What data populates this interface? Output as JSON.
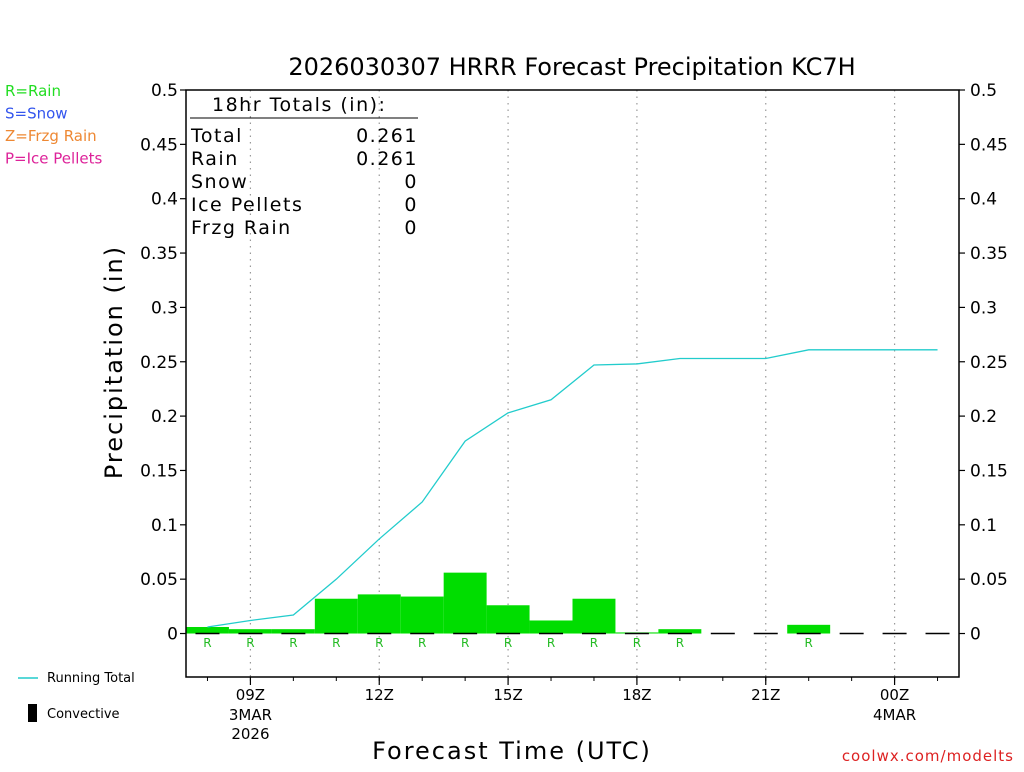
{
  "chart_data": {
    "type": "bar",
    "title": "2026030307 HRRR Forecast Precipitation KC7H",
    "xlabel": "Forecast Time (UTC)",
    "ylabel": "Precipitation (in)",
    "ylim": [
      -0.04,
      0.5
    ],
    "yticks": [
      "0",
      "0.05",
      "0.1",
      "0.15",
      "0.2",
      "0.25",
      "0.3",
      "0.35",
      "0.4",
      "0.45",
      "0.5"
    ],
    "ytick_values": [
      0,
      0.05,
      0.1,
      0.15,
      0.2,
      0.25,
      0.3,
      0.35,
      0.4,
      0.45,
      0.5
    ],
    "xlim_hours": [
      7.5,
      25.5
    ],
    "xticks": [
      {
        "hour": 9,
        "label": "09Z",
        "sub1": "3MAR",
        "sub2": "2026"
      },
      {
        "hour": 12,
        "label": "12Z",
        "sub1": "",
        "sub2": ""
      },
      {
        "hour": 15,
        "label": "15Z",
        "sub1": "",
        "sub2": ""
      },
      {
        "hour": 18,
        "label": "18Z",
        "sub1": "",
        "sub2": ""
      },
      {
        "hour": 21,
        "label": "21Z",
        "sub1": "",
        "sub2": ""
      },
      {
        "hour": 24,
        "label": "00Z",
        "sub1": "4MAR",
        "sub2": ""
      }
    ],
    "hours": [
      8,
      9,
      10,
      11,
      12,
      13,
      14,
      15,
      16,
      17,
      18,
      19,
      20,
      21,
      22,
      23,
      24,
      25
    ],
    "hourly_precip": [
      0.006,
      0.004,
      0.004,
      0.032,
      0.036,
      0.034,
      0.056,
      0.026,
      0.012,
      0.032,
      0.001,
      0.004,
      0,
      0,
      0.008,
      0,
      0,
      0
    ],
    "ptype": [
      "R",
      "R",
      "R",
      "R",
      "R",
      "R",
      "R",
      "R",
      "R",
      "R",
      "R",
      "R",
      "",
      "",
      "R",
      "",
      "",
      ""
    ],
    "running_total": [
      0.006,
      0.012,
      0.017,
      0.05,
      0.087,
      0.121,
      0.177,
      0.203,
      0.215,
      0.247,
      0.248,
      0.253,
      0.253,
      0.253,
      0.261,
      0.261,
      0.261,
      0.261
    ],
    "grid": true
  },
  "totals": {
    "heading": "18hr Totals (in):",
    "rows": [
      {
        "label": "Total",
        "value": "0.261"
      },
      {
        "label": "Rain",
        "value": "0.261"
      },
      {
        "label": "Snow",
        "value": "0"
      },
      {
        "label": "Ice Pellets",
        "value": "0"
      },
      {
        "label": "Frzg Rain",
        "value": "0"
      }
    ]
  },
  "legend_types": [
    {
      "text": "R=Rain",
      "color": "#22dd22"
    },
    {
      "text": "S=Snow",
      "color": "#3355ee"
    },
    {
      "text": "Z=Frzg Rain",
      "color": "#ee8833"
    },
    {
      "text": "P=Ice Pellets",
      "color": "#dd2299"
    }
  ],
  "legend_lines": {
    "running_total": "Running Total",
    "convective": "Convective"
  },
  "credit": "coolwx.com/modelts",
  "colors": {
    "bar": "#00dd00",
    "line": "#22cccc",
    "axis": "#000000",
    "grid": "#999999",
    "credit": "#dd2222",
    "ptype_label": "#22bb22"
  }
}
